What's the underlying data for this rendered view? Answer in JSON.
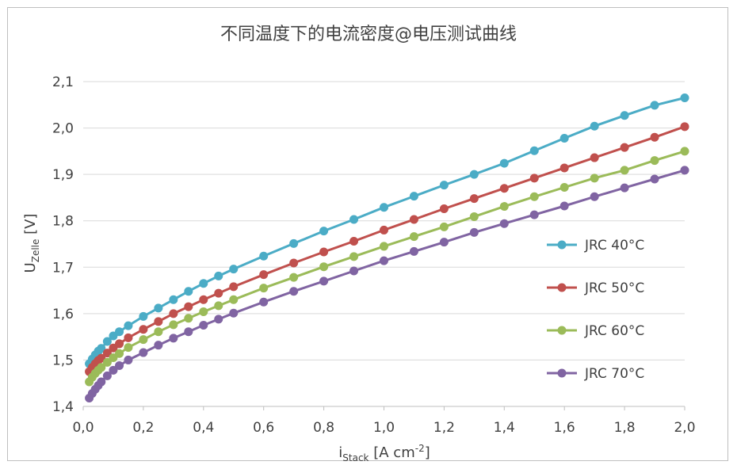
{
  "chart_data": {
    "type": "line",
    "title": "不同温度下的电流密度@电压测试曲线",
    "xlabel": {
      "main": "i",
      "sub": "Stack",
      "unit": " [A cm",
      "sup": "-2",
      "close": "]"
    },
    "ylabel": {
      "main": "U",
      "sub": "Zelle",
      "unit": " [V]"
    },
    "xlim": [
      0,
      2.0
    ],
    "ylim": [
      1.4,
      2.1
    ],
    "xticks": [
      "0,0",
      "0,2",
      "0,4",
      "0,6",
      "0,8",
      "1,0",
      "1,2",
      "1,4",
      "1,6",
      "1,8",
      "2,0"
    ],
    "xtick_values": [
      0,
      0.2,
      0.4,
      0.6,
      0.8,
      1.0,
      1.2,
      1.4,
      1.6,
      1.8,
      2.0
    ],
    "yticks": [
      "1,4",
      "1,5",
      "1,6",
      "1,7",
      "1,8",
      "1,9",
      "2,0",
      "2,1"
    ],
    "ytick_values": [
      1.4,
      1.5,
      1.6,
      1.7,
      1.8,
      1.9,
      2.0,
      2.1
    ],
    "grid": "horizontal",
    "legend_position": "right",
    "x": [
      0.02,
      0.03,
      0.04,
      0.05,
      0.06,
      0.08,
      0.1,
      0.12,
      0.15,
      0.2,
      0.25,
      0.3,
      0.35,
      0.4,
      0.45,
      0.5,
      0.6,
      0.7,
      0.8,
      0.9,
      1.0,
      1.1,
      1.2,
      1.3,
      1.4,
      1.5,
      1.6,
      1.7,
      1.8,
      1.9,
      2.0
    ],
    "series": [
      {
        "name": "JRC 40°C",
        "color": "#4bacc6",
        "values": [
          1.492,
          1.502,
          1.511,
          1.519,
          1.525,
          1.54,
          1.552,
          1.561,
          1.574,
          1.594,
          1.612,
          1.63,
          1.648,
          1.665,
          1.681,
          1.696,
          1.724,
          1.751,
          1.778,
          1.803,
          1.829,
          1.853,
          1.877,
          1.9,
          1.924,
          1.951,
          1.978,
          2.004,
          2.027,
          2.049,
          2.065
        ]
      },
      {
        "name": "JRC 50°C",
        "color": "#c0504d",
        "values": [
          1.475,
          1.484,
          1.492,
          1.499,
          1.504,
          1.515,
          1.526,
          1.535,
          1.548,
          1.566,
          1.583,
          1.6,
          1.615,
          1.63,
          1.644,
          1.658,
          1.684,
          1.709,
          1.733,
          1.756,
          1.78,
          1.803,
          1.826,
          1.848,
          1.87,
          1.892,
          1.914,
          1.936,
          1.958,
          1.98,
          2.003
        ]
      },
      {
        "name": "JRC 60°C",
        "color": "#9bbb59",
        "values": [
          1.453,
          1.463,
          1.471,
          1.478,
          1.484,
          1.495,
          1.505,
          1.514,
          1.527,
          1.544,
          1.561,
          1.576,
          1.59,
          1.604,
          1.617,
          1.63,
          1.655,
          1.678,
          1.701,
          1.723,
          1.745,
          1.766,
          1.787,
          1.809,
          1.831,
          1.852,
          1.872,
          1.892,
          1.909,
          1.93,
          1.95
        ]
      },
      {
        "name": "JRC 70°C",
        "color": "#8064a2",
        "values": [
          1.418,
          1.428,
          1.437,
          1.445,
          1.453,
          1.466,
          1.478,
          1.488,
          1.5,
          1.516,
          1.532,
          1.547,
          1.561,
          1.575,
          1.588,
          1.601,
          1.625,
          1.648,
          1.67,
          1.692,
          1.714,
          1.734,
          1.754,
          1.775,
          1.794,
          1.813,
          1.832,
          1.852,
          1.871,
          1.89,
          1.909
        ]
      }
    ]
  }
}
